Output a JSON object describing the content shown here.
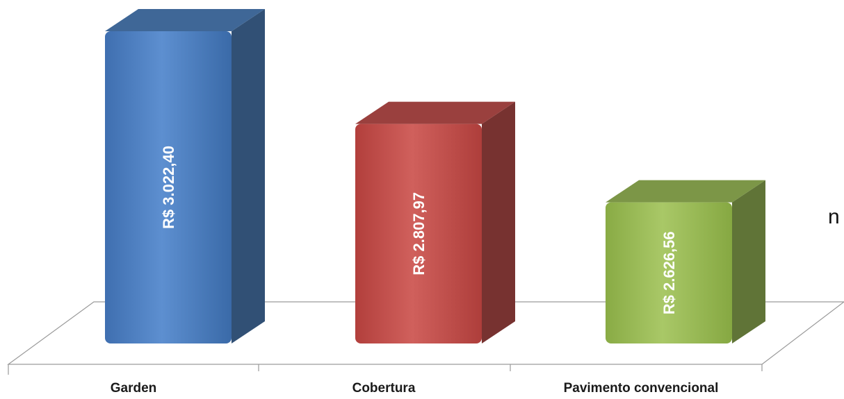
{
  "side_text": "n o",
  "chart_data": {
    "type": "bar",
    "categories": [
      "Garden",
      "Cobertura",
      "Pavimento convencional"
    ],
    "values": [
      3022.4,
      2807.97,
      2626.56
    ],
    "data_labels": [
      "R$ 3.022,40",
      "R$ 2.807,97",
      "R$ 2.626,56"
    ],
    "colors": [
      "#4f81bd",
      "#c0504d",
      "#9bbb59"
    ],
    "title": "",
    "xlabel": "",
    "ylabel": "",
    "ylim": [
      2300,
      3100
    ],
    "three_d": true,
    "grid": false,
    "legend": "none"
  }
}
